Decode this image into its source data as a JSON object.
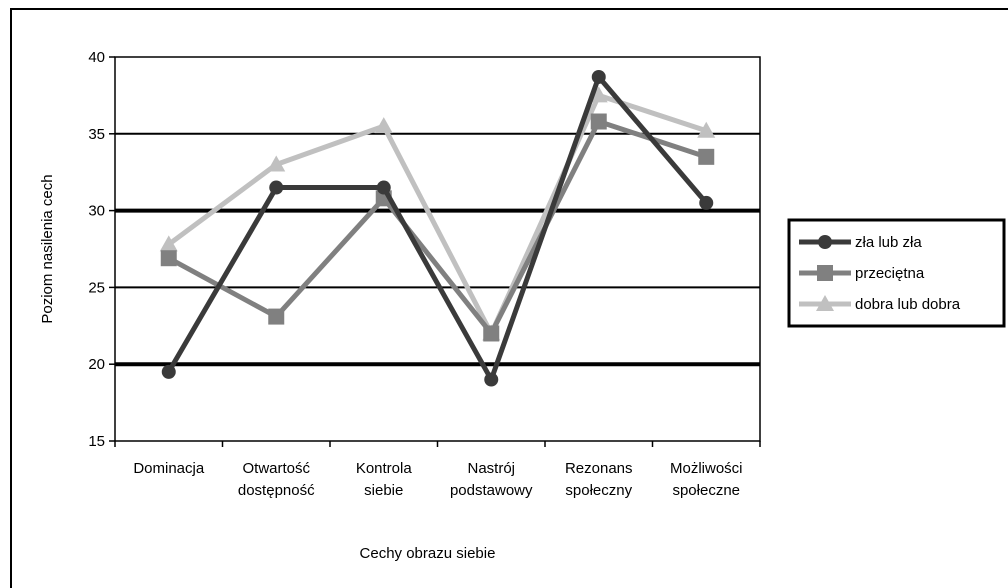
{
  "chart_data": {
    "type": "line",
    "categories": [
      [
        "Dominacja"
      ],
      [
        "Otwartość",
        "dostępność"
      ],
      [
        "Kontrola",
        "siebie"
      ],
      [
        "Nastrój",
        "podstawowy"
      ],
      [
        "Rezonans",
        "społeczny"
      ],
      [
        "Możliwości",
        "społeczne"
      ]
    ],
    "series": [
      {
        "name": "zła lub zła",
        "color": "#3a3a3a",
        "marker": "diamond",
        "values": [
          19.5,
          31.5,
          31.5,
          19.0,
          38.7,
          30.5
        ]
      },
      {
        "name": "przeciętna",
        "color": "#808080",
        "marker": "square",
        "values": [
          26.9,
          23.1,
          30.8,
          22.0,
          35.8,
          33.5
        ]
      },
      {
        "name": "dobra lub dobra",
        "color": "#c0c0c0",
        "marker": "triangle",
        "values": [
          27.8,
          33.0,
          35.5,
          22.0,
          37.5,
          35.2
        ]
      }
    ],
    "xlabel": "Cechy obrazu siebie",
    "ylabel": "Poziom nasilenia cech",
    "ylim": [
      15,
      40
    ],
    "yticks": [
      15,
      20,
      25,
      30,
      35,
      40
    ],
    "grid": true,
    "legend_position": "right"
  }
}
